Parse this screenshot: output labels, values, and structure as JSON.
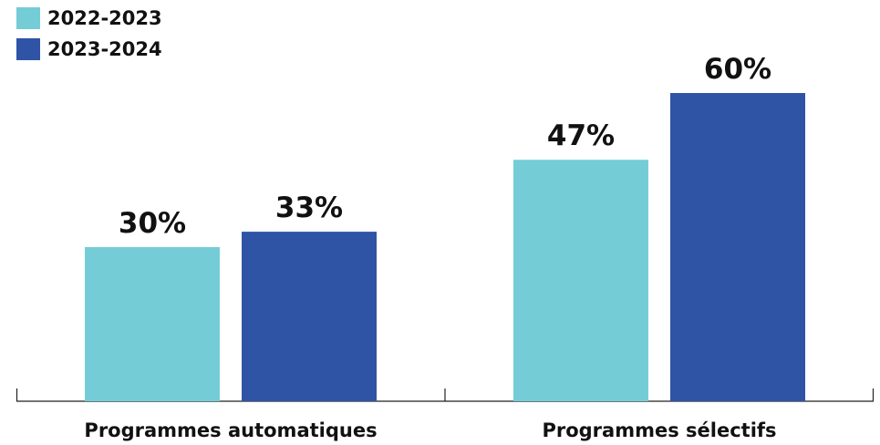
{
  "chart_data": {
    "type": "bar",
    "categories": [
      "Programmes automatiques",
      "Programmes sélectifs"
    ],
    "series": [
      {
        "name": "2022-2023",
        "color": "#74cdd6",
        "values": [
          30,
          47
        ],
        "value_labels": [
          "30%",
          "47%"
        ]
      },
      {
        "name": "2023-2024",
        "color": "#2f54a6",
        "values": [
          33,
          60
        ],
        "value_labels": [
          "33%",
          "60%"
        ]
      }
    ],
    "legend": "top-left"
  }
}
